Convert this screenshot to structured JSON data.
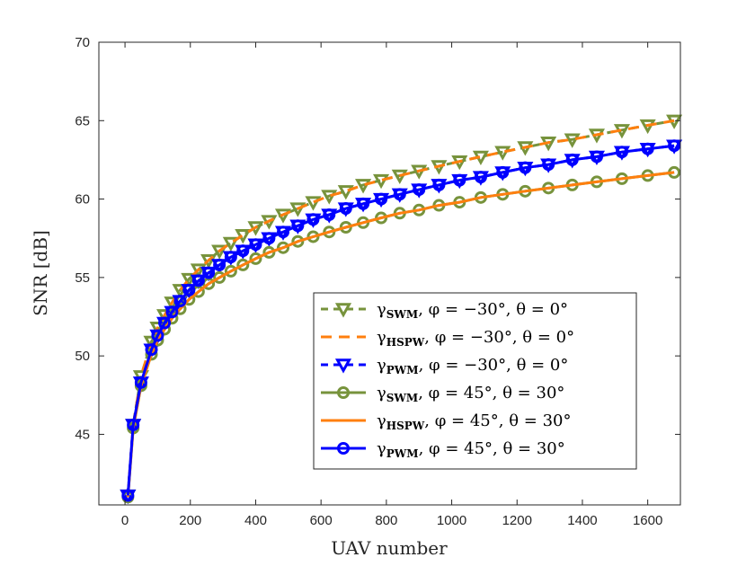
{
  "chart_data": {
    "type": "line",
    "title": "",
    "xlabel": "UAV number",
    "ylabel": "SNR [dB]",
    "xlim": [
      -80,
      1700
    ],
    "ylim": [
      40.5,
      70
    ],
    "xticks": [
      0,
      200,
      400,
      600,
      800,
      1000,
      1200,
      1400,
      1600
    ],
    "xtick_labels": [
      "0",
      "200",
      "400",
      "600",
      "800",
      "1000",
      "1200",
      "1400",
      "1600"
    ],
    "yticks": [
      45,
      50,
      55,
      60,
      65,
      70
    ],
    "ytick_labels": [
      "45",
      "50",
      "55",
      "60",
      "65",
      "70"
    ],
    "grid": false,
    "legend_position": "lower-right",
    "x": [
      9,
      25,
      49,
      81,
      100,
      121,
      144,
      169,
      196,
      225,
      256,
      289,
      324,
      361,
      400,
      441,
      484,
      529,
      576,
      625,
      676,
      729,
      784,
      841,
      900,
      961,
      1024,
      1089,
      1156,
      1225,
      1296,
      1369,
      1444,
      1521,
      1600,
      1681
    ],
    "series": [
      {
        "name": "SWM, φ = −30°, θ = 0°",
        "legend": {
          "sym": "γ",
          "sub": "SWM",
          "rest": ", φ = −30°, θ = 0°"
        },
        "color": "#77933C",
        "dash": "8,6",
        "marker": "triangle-down",
        "width": 3,
        "values": [
          41.1,
          45.6,
          48.7,
          50.9,
          51.8,
          52.6,
          53.4,
          54.2,
          54.9,
          55.5,
          56.1,
          56.7,
          57.2,
          57.7,
          58.2,
          58.6,
          59.0,
          59.4,
          59.8,
          60.2,
          60.5,
          60.9,
          61.2,
          61.5,
          61.8,
          62.1,
          62.4,
          62.7,
          63.0,
          63.3,
          63.6,
          63.8,
          64.1,
          64.4,
          64.7,
          65.0
        ]
      },
      {
        "name": "HSPW, φ = −30°, θ = 0°",
        "legend": {
          "sym": "γ",
          "sub": "HSPW",
          "rest": ", φ = −30°, θ = 0°"
        },
        "color": "#FF7F0E",
        "dash": "12,8",
        "marker": "none",
        "width": 3,
        "values": [
          41.1,
          45.6,
          48.7,
          50.9,
          51.8,
          52.6,
          53.4,
          54.2,
          54.9,
          55.5,
          56.1,
          56.7,
          57.2,
          57.7,
          58.2,
          58.6,
          59.0,
          59.4,
          59.8,
          60.2,
          60.5,
          60.9,
          61.2,
          61.5,
          61.8,
          62.1,
          62.4,
          62.7,
          63.0,
          63.3,
          63.6,
          63.8,
          64.1,
          64.4,
          64.7,
          65.0
        ]
      },
      {
        "name": "PWM, φ = −30°, θ = 0°",
        "legend": {
          "sym": "γ",
          "sub": "PWM",
          "rest": ", φ = −30°, θ = 0°"
        },
        "color": "#0000FF",
        "dash": "8,6",
        "marker": "triangle-down",
        "width": 3,
        "values": [
          41.1,
          45.6,
          48.3,
          50.4,
          51.3,
          52.1,
          52.8,
          53.5,
          54.2,
          54.8,
          55.3,
          55.8,
          56.3,
          56.7,
          57.1,
          57.5,
          57.9,
          58.3,
          58.7,
          59.0,
          59.4,
          59.7,
          60.0,
          60.3,
          60.6,
          60.9,
          61.2,
          61.4,
          61.7,
          62.0,
          62.2,
          62.5,
          62.7,
          63.0,
          63.2,
          63.4
        ]
      },
      {
        "name": "SWM, φ = 45°, θ = 30°",
        "legend": {
          "sym": "γ",
          "sub": "SWM",
          "rest": ", φ = 45°, θ = 30°"
        },
        "color": "#77933C",
        "dash": "",
        "marker": "circle",
        "width": 3,
        "values": [
          41.0,
          45.4,
          48.1,
          50.1,
          51.0,
          51.7,
          52.4,
          53.0,
          53.6,
          54.1,
          54.6,
          55.0,
          55.4,
          55.8,
          56.2,
          56.6,
          56.9,
          57.3,
          57.6,
          57.9,
          58.2,
          58.5,
          58.8,
          59.1,
          59.3,
          59.6,
          59.8,
          60.1,
          60.3,
          60.5,
          60.7,
          60.9,
          61.1,
          61.3,
          61.5,
          61.7
        ]
      },
      {
        "name": "HSPW, φ = 45°, θ = 30°",
        "legend": {
          "sym": "γ",
          "sub": "HSPW",
          "rest": ", φ = 45°, θ = 30°"
        },
        "color": "#FF7F0E",
        "dash": "",
        "marker": "none",
        "width": 3,
        "values": [
          41.0,
          45.4,
          48.1,
          50.1,
          51.0,
          51.7,
          52.4,
          53.0,
          53.6,
          54.1,
          54.6,
          55.0,
          55.4,
          55.8,
          56.2,
          56.6,
          56.9,
          57.3,
          57.6,
          57.9,
          58.2,
          58.5,
          58.8,
          59.1,
          59.3,
          59.6,
          59.8,
          60.1,
          60.3,
          60.5,
          60.7,
          60.9,
          61.1,
          61.3,
          61.5,
          61.7
        ]
      },
      {
        "name": "PWM, φ = 45°, θ = 30°",
        "legend": {
          "sym": "γ",
          "sub": "PWM",
          "rest": ", φ = 45°, θ = 30°"
        },
        "color": "#0000FF",
        "dash": "",
        "marker": "circle",
        "width": 3,
        "values": [
          41.1,
          45.6,
          48.3,
          50.4,
          51.3,
          52.1,
          52.8,
          53.5,
          54.2,
          54.8,
          55.3,
          55.8,
          56.3,
          56.7,
          57.1,
          57.5,
          57.9,
          58.3,
          58.7,
          59.0,
          59.4,
          59.7,
          60.0,
          60.3,
          60.6,
          60.9,
          61.2,
          61.4,
          61.7,
          62.0,
          62.2,
          62.5,
          62.7,
          63.0,
          63.2,
          63.4
        ]
      }
    ]
  }
}
